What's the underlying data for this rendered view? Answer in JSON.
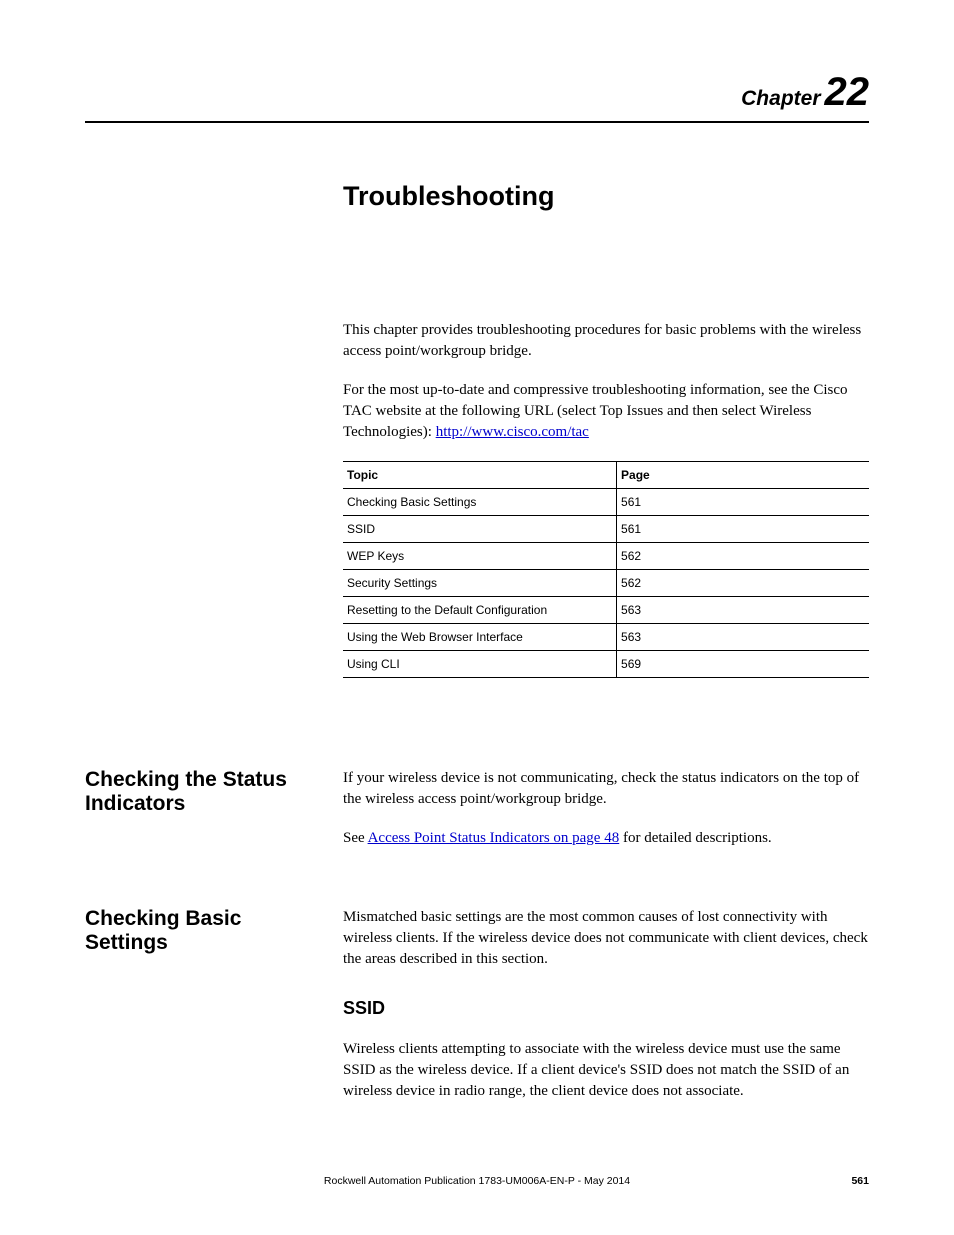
{
  "chapter": {
    "label": "Chapter",
    "number": "22"
  },
  "title": "Troubleshooting",
  "intro1": "This chapter provides troubleshooting procedures for basic problems with the wireless access point/workgroup bridge.",
  "intro2_a": "For the most up-to-date and compressive troubleshooting information, see the Cisco TAC website at the following URL (select Top Issues and then select Wireless Technologies): ",
  "intro2_link": "http://www.cisco.com/tac",
  "table": {
    "headers": [
      "Topic",
      "Page"
    ],
    "rows": [
      [
        "Checking Basic Settings",
        "561"
      ],
      [
        "SSID",
        "561"
      ],
      [
        "WEP Keys",
        "562"
      ],
      [
        "Security Settings",
        "562"
      ],
      [
        "Resetting to the Default Configuration",
        "563"
      ],
      [
        "Using the Web Browser Interface",
        "563"
      ],
      [
        "Using CLI",
        "569"
      ]
    ]
  },
  "section1": {
    "heading": "Checking the Status Indicators",
    "p1": "If your wireless device is not communicating, check the status indicators on the top of the wireless access point/workgroup bridge.",
    "p2_a": "See ",
    "p2_link": "Access Point Status Indicators on page 48",
    "p2_b": " for detailed descriptions."
  },
  "section2": {
    "heading": "Checking Basic Settings",
    "p1": "Mismatched basic settings are the most common causes of lost connectivity with wireless clients. If the wireless device does not communicate with client devices, check the areas described in this section.",
    "sub_heading": "SSID",
    "p2": "Wireless clients attempting to associate with the wireless device must use the same SSID as the wireless device. If a client device's SSID does not match the SSID of an wireless device in radio range, the client device does not associate."
  },
  "footer": {
    "text": "Rockwell Automation Publication 1783-UM006A-EN-P - May 2014",
    "page": "561"
  }
}
